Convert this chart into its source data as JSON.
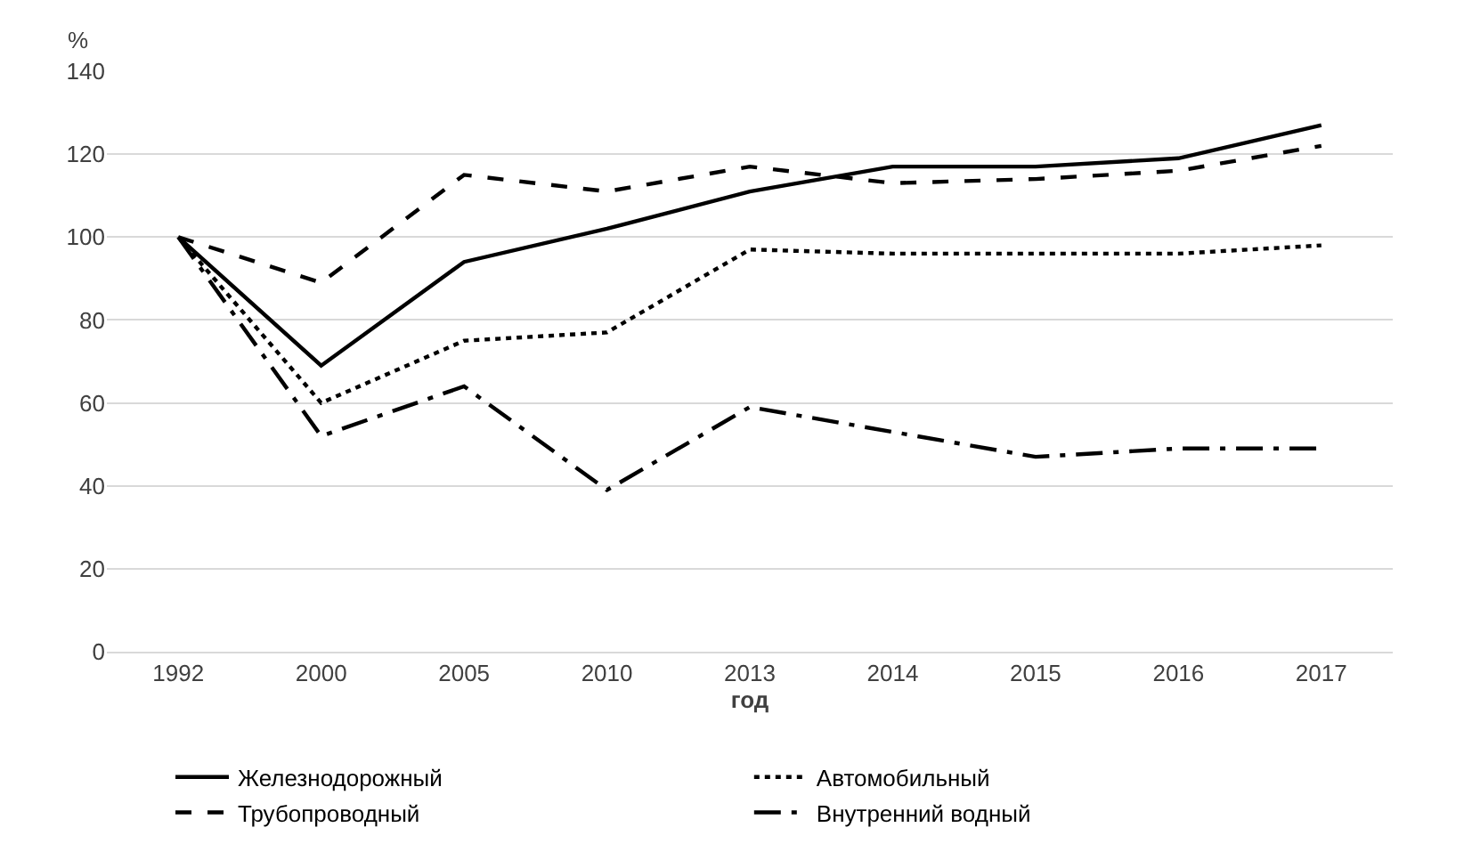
{
  "chart_data": {
    "type": "line",
    "xlabel": "год",
    "ylabel": "%",
    "categories": [
      "1992",
      "2000",
      "2005",
      "2010",
      "2013",
      "2014",
      "2015",
      "2016",
      "2017"
    ],
    "series": [
      {
        "name": "Железнодорожный",
        "color": "#000000",
        "line_style": "solid",
        "values": [
          100,
          69,
          94,
          102,
          111,
          117,
          117,
          119,
          127
        ]
      },
      {
        "name": "Автомобильный",
        "color": "#000000",
        "line_style": "dotted",
        "values": [
          100,
          60,
          75,
          77,
          97,
          96,
          96,
          96,
          98
        ]
      },
      {
        "name": "Трубопроводный",
        "color": "#000000",
        "line_style": "dashed",
        "values": [
          100,
          89,
          115,
          111,
          117,
          113,
          114,
          116,
          122
        ]
      },
      {
        "name": "Внутренний водный",
        "color": "#000000",
        "line_style": "dashdot",
        "values": [
          100,
          52,
          64,
          39,
          59,
          53,
          47,
          49,
          49
        ]
      }
    ],
    "ylim": [
      0,
      140
    ],
    "yticks": [
      0,
      20,
      40,
      60,
      80,
      100,
      120,
      140
    ],
    "grid": "y",
    "legend": "bottom",
    "marker": "none"
  }
}
